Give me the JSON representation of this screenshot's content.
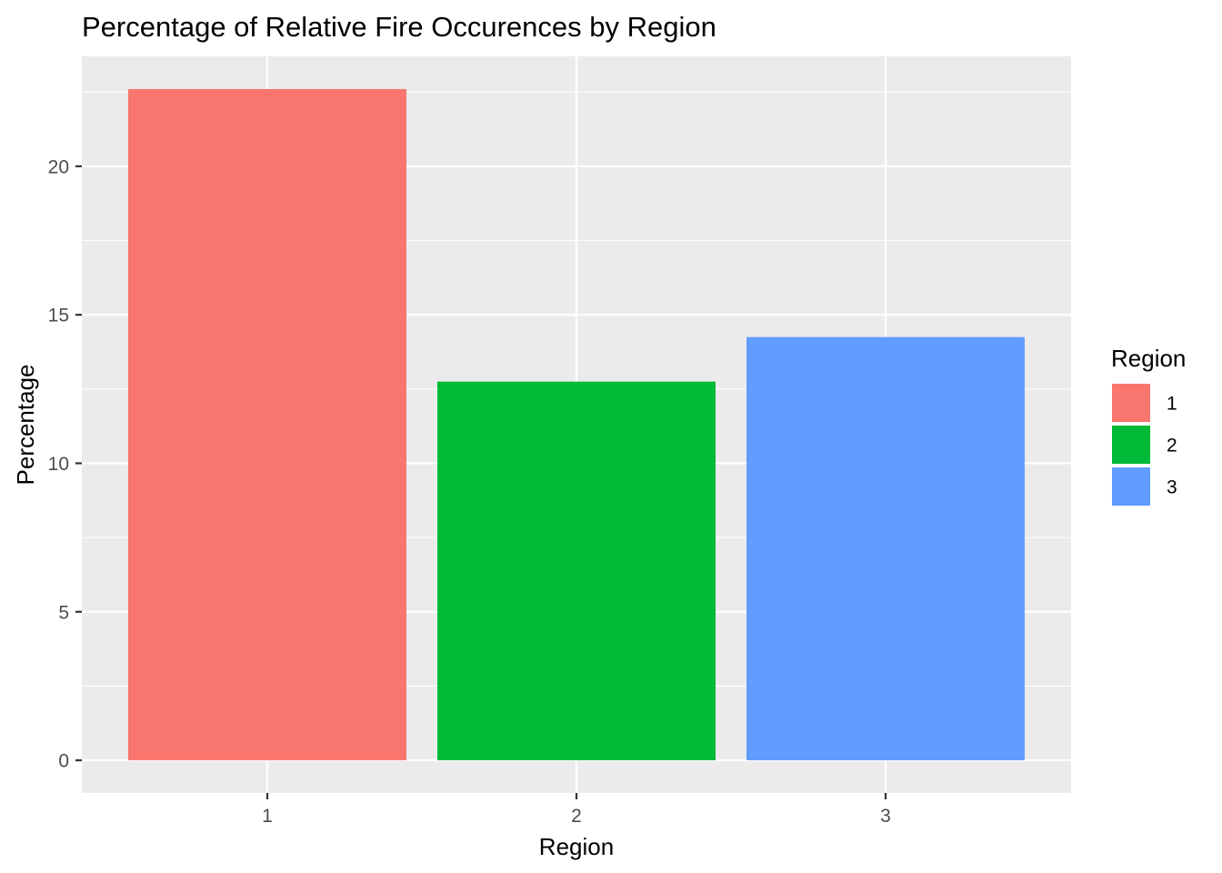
{
  "chart_data": {
    "type": "bar",
    "title": "Percentage of Relative Fire Occurences by Region",
    "xlabel": "Region",
    "ylabel": "Percentage",
    "categories": [
      "1",
      "2",
      "3"
    ],
    "values": [
      22.6,
      12.75,
      14.25
    ],
    "colors": [
      "#F8766D",
      "#00BA38",
      "#619CFF"
    ],
    "ylim": [
      -1.1,
      23.7
    ],
    "yticks": [
      0,
      5,
      10,
      15,
      20
    ],
    "ytick_labels": [
      "0",
      "5",
      "10",
      "15",
      "20"
    ],
    "grid": true,
    "panel_background": "#EBEBEB",
    "gridline_color": "#FFFFFF",
    "legend": {
      "title": "Region",
      "position": "right",
      "entries": [
        "1",
        "2",
        "3"
      ]
    }
  }
}
